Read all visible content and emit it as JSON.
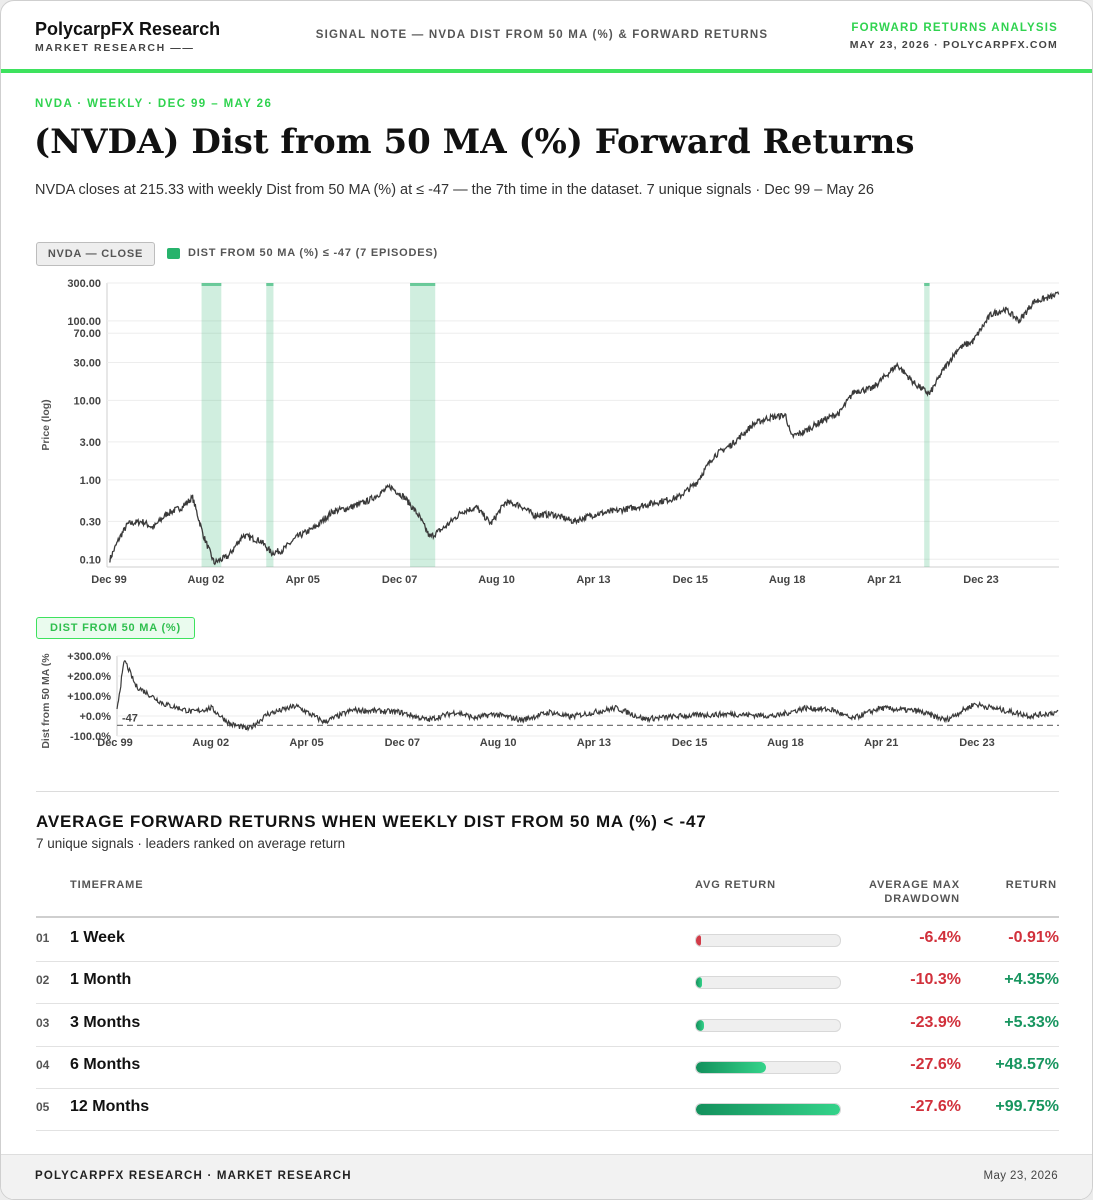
{
  "header": {
    "brand": "PolycarpFX Research",
    "brand_sub": "MARKET RESEARCH ——",
    "center": "SIGNAL NOTE — NVDA DIST FROM 50 MA (%) & FORWARD RETURNS",
    "right_title": "FORWARD RETURNS ANALYSIS",
    "right_sub": "MAY 23, 2026 · POLYCARPFX.COM",
    "accent": "#3ee25e"
  },
  "kicker": "NVDA · WEEKLY · DEC 99 – MAY 26",
  "title": "(NVDA) Dist from 50 MA (%) Forward Returns",
  "subtitle": "NVDA closes at 215.33 with weekly Dist from 50 MA (%) at ≤ -47 — the 7th time in the dataset. 7 unique signals · Dec 99 – May 26",
  "price_panel": {
    "badge": "NVDA — CLOSE",
    "legend": "DIST FROM 50 MA (%) ≤ -47 (7 EPISODES)"
  },
  "dist_panel": {
    "badge": "DIST FROM 50 MA (%)"
  },
  "chart_data": [
    {
      "type": "line",
      "ylabel": "Price (log)",
      "yscale": "log",
      "ylim": [
        0.08,
        300
      ],
      "yticks": [
        "300.00",
        "100.00",
        "70.00",
        "30.00",
        "10.00",
        "3.00",
        "1.00",
        "0.30",
        "0.10"
      ],
      "xticks": [
        "Dec 99",
        "Aug 02",
        "Apr 05",
        "Dec 07",
        "Aug 10",
        "Apr 13",
        "Dec 15",
        "Aug 18",
        "Apr 21",
        "Dec 23"
      ],
      "series": [
        {
          "values_by_year": [
            [
              2000.0,
              0.1
            ],
            [
              2000.25,
              0.18
            ],
            [
              2000.5,
              0.28
            ],
            [
              2000.9,
              0.3
            ],
            [
              2001.2,
              0.25
            ],
            [
              2001.6,
              0.38
            ],
            [
              2002.0,
              0.45
            ],
            [
              2002.3,
              0.6
            ],
            [
              2002.6,
              0.2
            ],
            [
              2002.9,
              0.09
            ],
            [
              2003.3,
              0.11
            ],
            [
              2003.7,
              0.2
            ],
            [
              2004.2,
              0.17
            ],
            [
              2004.5,
              0.12
            ],
            [
              2004.8,
              0.13
            ],
            [
              2005.2,
              0.19
            ],
            [
              2005.7,
              0.25
            ],
            [
              2006.2,
              0.4
            ],
            [
              2006.7,
              0.45
            ],
            [
              2007.2,
              0.55
            ],
            [
              2007.8,
              0.82
            ],
            [
              2008.2,
              0.6
            ],
            [
              2008.6,
              0.35
            ],
            [
              2008.9,
              0.19
            ],
            [
              2009.3,
              0.25
            ],
            [
              2009.8,
              0.4
            ],
            [
              2010.2,
              0.45
            ],
            [
              2010.6,
              0.28
            ],
            [
              2011.0,
              0.52
            ],
            [
              2011.4,
              0.48
            ],
            [
              2011.8,
              0.36
            ],
            [
              2012.3,
              0.37
            ],
            [
              2012.9,
              0.3
            ],
            [
              2013.5,
              0.37
            ],
            [
              2014.0,
              0.4
            ],
            [
              2014.6,
              0.45
            ],
            [
              2015.2,
              0.52
            ],
            [
              2015.8,
              0.6
            ],
            [
              2016.3,
              0.9
            ],
            [
              2016.8,
              2.0
            ],
            [
              2017.3,
              2.8
            ],
            [
              2017.9,
              5.0
            ],
            [
              2018.3,
              6.0
            ],
            [
              2018.8,
              6.5
            ],
            [
              2018.95,
              3.5
            ],
            [
              2019.3,
              4.0
            ],
            [
              2019.8,
              5.5
            ],
            [
              2020.3,
              7.0
            ],
            [
              2020.7,
              13.0
            ],
            [
              2021.2,
              14.0
            ],
            [
              2021.9,
              28.0
            ],
            [
              2022.4,
              16.0
            ],
            [
              2022.8,
              12.0
            ],
            [
              2023.2,
              25.0
            ],
            [
              2023.6,
              45.0
            ],
            [
              2024.0,
              55.0
            ],
            [
              2024.5,
              120.0
            ],
            [
              2024.9,
              140.0
            ],
            [
              2025.3,
              100.0
            ],
            [
              2025.7,
              175.0
            ],
            [
              2026.0,
              190.0
            ],
            [
              2026.39,
              215.33
            ]
          ],
          "note": ""
        }
      ],
      "shaded_signal_periods": [
        [
          2002.55,
          2003.1
        ],
        [
          2004.35,
          2004.55
        ],
        [
          2008.35,
          2009.05
        ],
        [
          2022.65,
          2022.8
        ]
      ]
    },
    {
      "type": "line",
      "ylabel": "Dist from 50 MA (%",
      "ylim": [
        -100,
        300
      ],
      "yticks": [
        "+300.0%",
        "+200.0%",
        "+100.0%",
        "+0.0%",
        "-100.0%"
      ],
      "threshold": -47,
      "threshold_label": "-47",
      "xticks": [
        "Dec 99",
        "Aug 02",
        "Apr 05",
        "Dec 07",
        "Aug 10",
        "Apr 13",
        "Dec 15",
        "Aug 18",
        "Apr 21",
        "Dec 23"
      ]
    }
  ],
  "table": {
    "title": "AVERAGE FORWARD RETURNS WHEN WEEKLY DIST FROM 50 MA (%) < -47",
    "subtitle": "7 unique signals · leaders ranked on average return",
    "col_timeframe": "TIMEFRAME",
    "col_avg": "AVG RETURN",
    "col_dd_1": "AVERAGE MAX",
    "col_dd_2": "DRAWDOWN",
    "col_ret": "RETURN",
    "rows": [
      {
        "num": "01",
        "label": "1 Week",
        "dd": "-6.4%",
        "ret": "-0.91%",
        "value": -0.91
      },
      {
        "num": "02",
        "label": "1 Month",
        "dd": "-10.3%",
        "ret": "+4.35%",
        "value": 4.35
      },
      {
        "num": "03",
        "label": "3 Months",
        "dd": "-23.9%",
        "ret": "+5.33%",
        "value": 5.33
      },
      {
        "num": "04",
        "label": "6 Months",
        "dd": "-27.6%",
        "ret": "+48.57%",
        "value": 48.57
      },
      {
        "num": "05",
        "label": "12 Months",
        "dd": "-27.6%",
        "ret": "+99.75%",
        "value": 99.75
      }
    ]
  },
  "footer": {
    "left": "POLYCARPFX RESEARCH · MARKET RESEARCH",
    "right": "May 23, 2026"
  }
}
